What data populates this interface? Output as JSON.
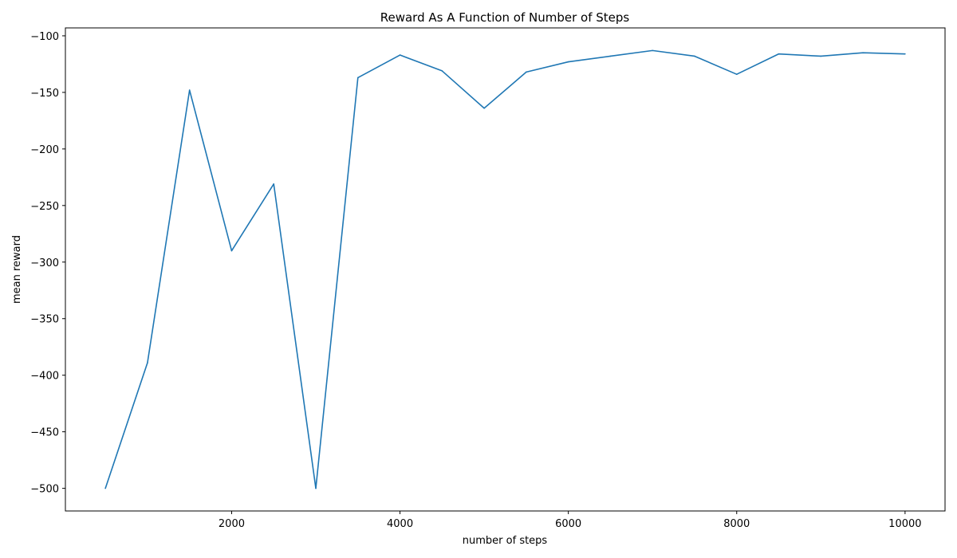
{
  "chart_data": {
    "type": "line",
    "title": "Reward As A Function of Number of Steps",
    "xlabel": "number of steps",
    "ylabel": "mean reward",
    "xlim": [
      25,
      10475
    ],
    "ylim": [
      -520,
      -93
    ],
    "x_ticks": [
      2000,
      4000,
      6000,
      8000,
      10000
    ],
    "x_tick_labels": [
      "2000",
      "4000",
      "6000",
      "8000",
      "10000"
    ],
    "y_ticks": [
      -500,
      -450,
      -400,
      -350,
      -300,
      -250,
      -200,
      -150,
      -100
    ],
    "y_tick_labels": [
      "−500",
      "−450",
      "−400",
      "−350",
      "−300",
      "−250",
      "−200",
      "−150",
      "−100"
    ],
    "grid": false,
    "series": [
      {
        "color": "#1f77b4",
        "x": [
          500,
          1000,
          1500,
          2000,
          2500,
          3000,
          3500,
          4000,
          4500,
          5000,
          5500,
          6000,
          6500,
          7000,
          7500,
          8000,
          8500,
          9000,
          9500,
          10000
        ],
        "y": [
          -500,
          -389,
          -148,
          -290,
          -231,
          -500,
          -137,
          -117,
          -131,
          -164,
          -132,
          -123,
          -118,
          -113,
          -118,
          -134,
          -116,
          -118,
          -115,
          -116
        ]
      }
    ]
  }
}
